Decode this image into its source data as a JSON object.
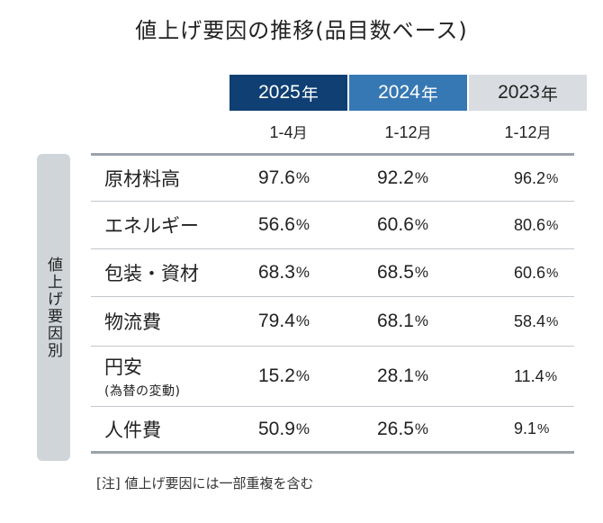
{
  "title": "値上げ要因の推移(品目数ベース)",
  "years": [
    {
      "year": "2025",
      "suffix": "年",
      "period": "1-4",
      "period_suffix": "月"
    },
    {
      "year": "2024",
      "suffix": "年",
      "period": "1-12",
      "period_suffix": "月"
    },
    {
      "year": "2023",
      "suffix": "年",
      "period": "1-12",
      "period_suffix": "月"
    }
  ],
  "side_label": "値上げ要因別",
  "rows": [
    {
      "label": "原材料高",
      "sub": "",
      "v2025": "97.6",
      "v2024": "92.2",
      "v2023": "96.2"
    },
    {
      "label": "エネルギー",
      "sub": "",
      "v2025": "56.6",
      "v2024": "60.6",
      "v2023": "80.6"
    },
    {
      "label": "包装・資材",
      "sub": "",
      "v2025": "68.3",
      "v2024": "68.5",
      "v2023": "60.6"
    },
    {
      "label": "物流費",
      "sub": "",
      "v2025": "79.4",
      "v2024": "68.1",
      "v2023": "58.4"
    },
    {
      "label": "円安",
      "sub": "(為替の変動)",
      "v2025": "15.2",
      "v2024": "28.1",
      "v2023": "11.4"
    },
    {
      "label": "人件費",
      "sub": "",
      "v2025": "50.9",
      "v2024": "26.5",
      "v2023": "9.1"
    }
  ],
  "unit": "%",
  "note": "[注] 値上げ要因には一部重複を含む",
  "colors": {
    "y2025": "#0f3f73",
    "y2024": "#3678b4",
    "y2023": "#d9dde1",
    "sidebar": "#d0d5d9",
    "rule": "#9aa2a9"
  },
  "chart_data": {
    "type": "table",
    "title": "値上げ要因の推移(品目数ベース)",
    "columns": [
      "2025年 1-4月",
      "2024年 1-12月",
      "2023年 1-12月"
    ],
    "categories": [
      "原材料高",
      "エネルギー",
      "包装・資材",
      "物流費",
      "円安(為替の変動)",
      "人件費"
    ],
    "series": [
      {
        "name": "2025年 1-4月",
        "values": [
          97.6,
          56.6,
          68.3,
          79.4,
          15.2,
          50.9
        ]
      },
      {
        "name": "2024年 1-12月",
        "values": [
          92.2,
          60.6,
          68.5,
          68.1,
          28.1,
          26.5
        ]
      },
      {
        "name": "2023年 1-12月",
        "values": [
          96.2,
          80.6,
          60.6,
          58.4,
          11.4,
          9.1
        ]
      }
    ],
    "unit": "%",
    "note": "[注] 値上げ要因には一部重複を含む"
  }
}
